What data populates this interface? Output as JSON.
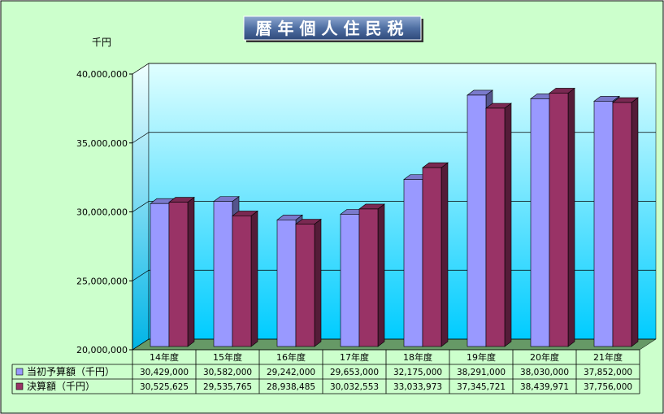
{
  "chart_data": {
    "type": "bar",
    "title": "暦年個人住民税",
    "ylabel": "千円",
    "xlabel": "",
    "ylim": [
      20000000,
      40000000
    ],
    "yticks": [
      20000000,
      25000000,
      30000000,
      35000000,
      40000000
    ],
    "ytick_labels": [
      "20,000,000",
      "25,000,000",
      "30,000,000",
      "35,000,000",
      "40,000,000"
    ],
    "grid": true,
    "legend": "table-left",
    "categories": [
      "14年度",
      "15年度",
      "16年度",
      "17年度",
      "18年度",
      "19年度",
      "20年度",
      "21年度"
    ],
    "series": [
      {
        "name": "当初予算額（千円）",
        "color": "#9999ff",
        "values": [
          30429000,
          30582000,
          29242000,
          29653000,
          32175000,
          38291000,
          38030000,
          37852000
        ],
        "labels": [
          "30,429,000",
          "30,582,000",
          "29,242,000",
          "29,653,000",
          "32,175,000",
          "38,291,000",
          "38,030,000",
          "37,852,000"
        ]
      },
      {
        "name": "決算額（千円）",
        "color": "#993366",
        "values": [
          30525625,
          29535765,
          28938485,
          30032553,
          33033973,
          37345721,
          38439971,
          37756000
        ],
        "labels": [
          "30,525,625",
          "29,535,765",
          "28,938,485",
          "30,032,553",
          "33,033,973",
          "37,345,721",
          "38,439,971",
          "37,756,000"
        ]
      }
    ]
  },
  "colors": {
    "background": "#ccffcc",
    "plot_top": "#e0ffff",
    "plot_bottom": "#00ccff",
    "floor": "#669966",
    "title_bg": "#5577aa"
  }
}
